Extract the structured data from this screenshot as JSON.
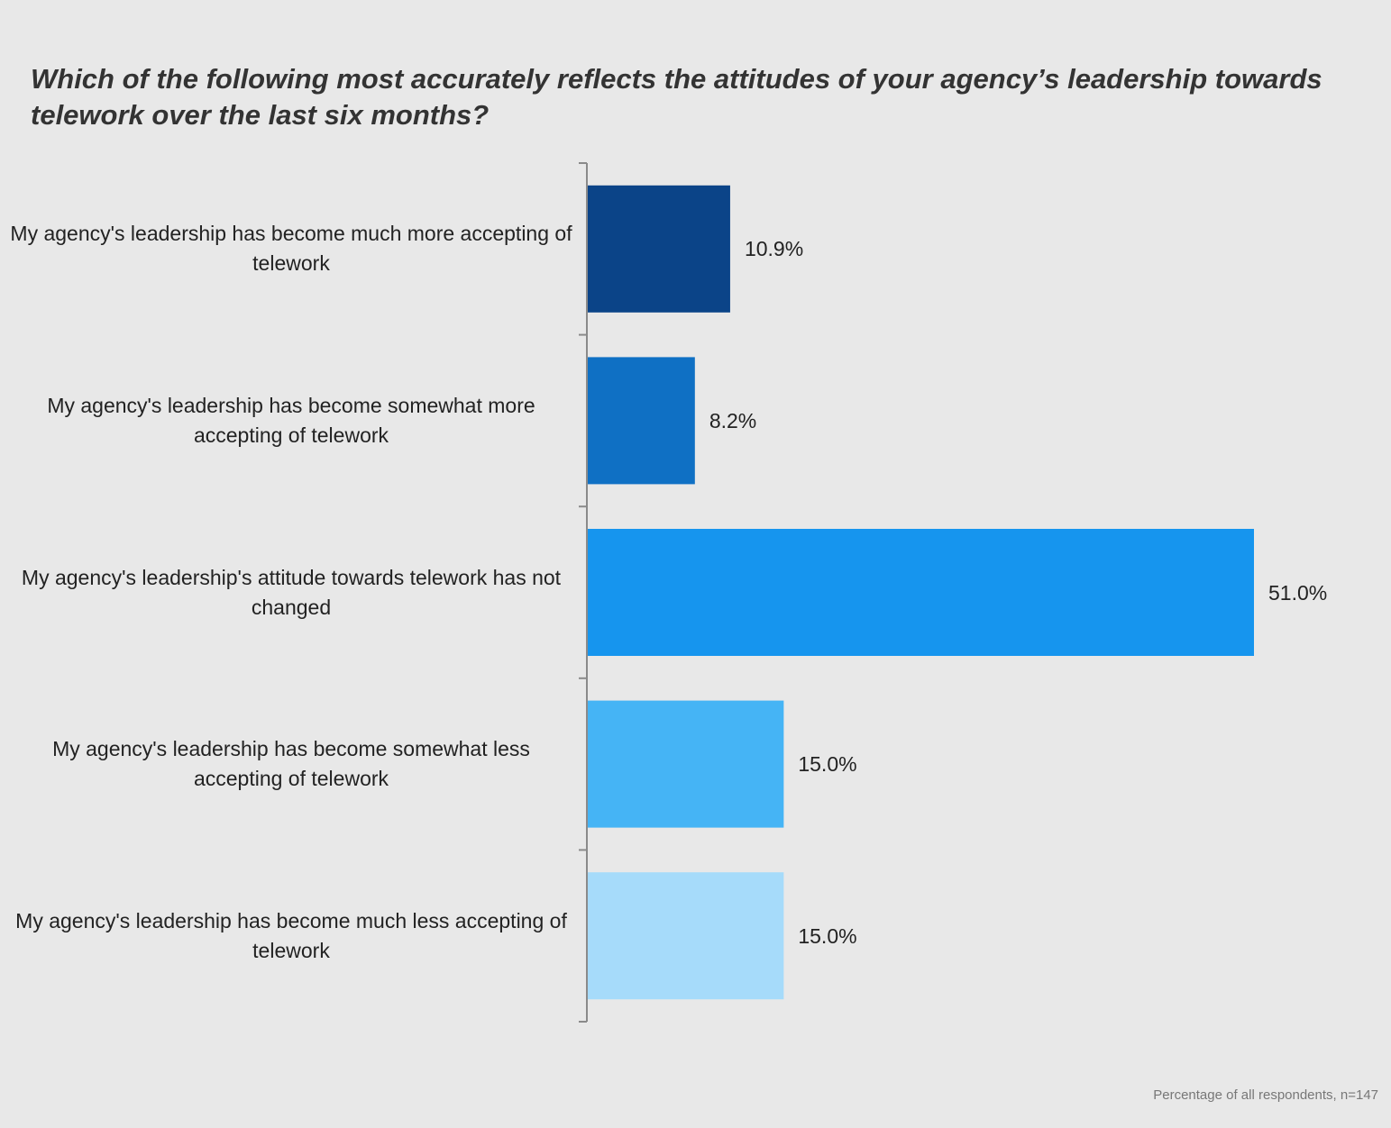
{
  "chart_data": {
    "type": "bar",
    "orientation": "horizontal",
    "title": "Which of the following most accurately reflects the attitudes of your agency’s leadership towards telework over the last six months?",
    "categories": [
      "My agency's leadership has become much more accepting of telework",
      "My agency's leadership has become somewhat more accepting of telework",
      "My agency's leadership's attitude towards telework has not changed",
      "My agency's leadership has become somewhat less accepting of telework",
      "My agency's leadership has become much less accepting of telework"
    ],
    "values": [
      10.9,
      8.2,
      51.0,
      15.0,
      15.0
    ],
    "value_labels": [
      "10.9%",
      "8.2%",
      "51.0%",
      "15.0%",
      "15.0%"
    ],
    "colors": [
      "#0b4488",
      "#0f70c4",
      "#1695ee",
      "#45b4f5",
      "#a6dbfa"
    ],
    "xlim": [
      0,
      51.0
    ],
    "grid": false,
    "legend": "none",
    "footnote": "Percentage of all respondents, n=147"
  }
}
